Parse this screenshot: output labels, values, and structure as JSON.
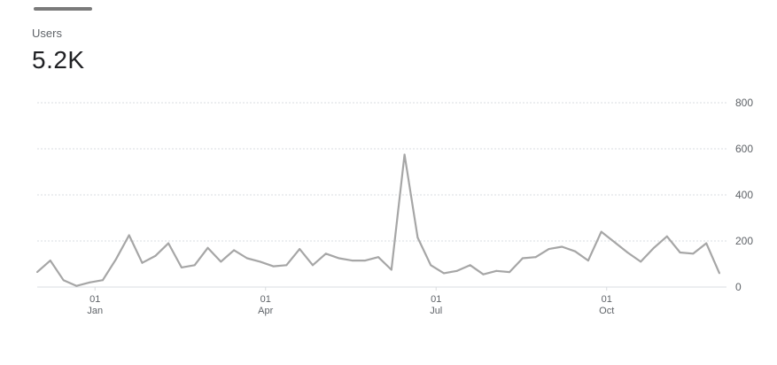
{
  "metric": {
    "label": "Users",
    "value": "5.2K"
  },
  "colors": {
    "line": "#a6a6a6",
    "grid": "#dadce0",
    "text": "#5f6368"
  },
  "chart_data": {
    "type": "line",
    "title": "",
    "xlabel": "",
    "ylabel": "",
    "ylim": [
      0,
      800
    ],
    "yticks": [
      "0",
      "200",
      "400",
      "600",
      "800"
    ],
    "xticks": [
      {
        "day": "01",
        "month": "Jan",
        "index": 4
      },
      {
        "day": "01",
        "month": "Apr",
        "index": 17
      },
      {
        "day": "01",
        "month": "Jul",
        "index": 30
      },
      {
        "day": "01",
        "month": "Oct",
        "index": 43
      }
    ],
    "grid": true,
    "series": [
      {
        "name": "",
        "values": [
          65,
          115,
          30,
          5,
          20,
          30,
          120,
          225,
          105,
          135,
          190,
          85,
          95,
          170,
          110,
          160,
          125,
          110,
          90,
          95,
          165,
          95,
          145,
          125,
          115,
          115,
          130,
          75,
          575,
          215,
          95,
          60,
          70,
          95,
          55,
          70,
          65,
          125,
          130,
          165,
          175,
          155,
          115,
          240,
          195,
          150,
          110,
          170,
          220,
          150,
          145,
          190,
          60
        ]
      }
    ]
  }
}
